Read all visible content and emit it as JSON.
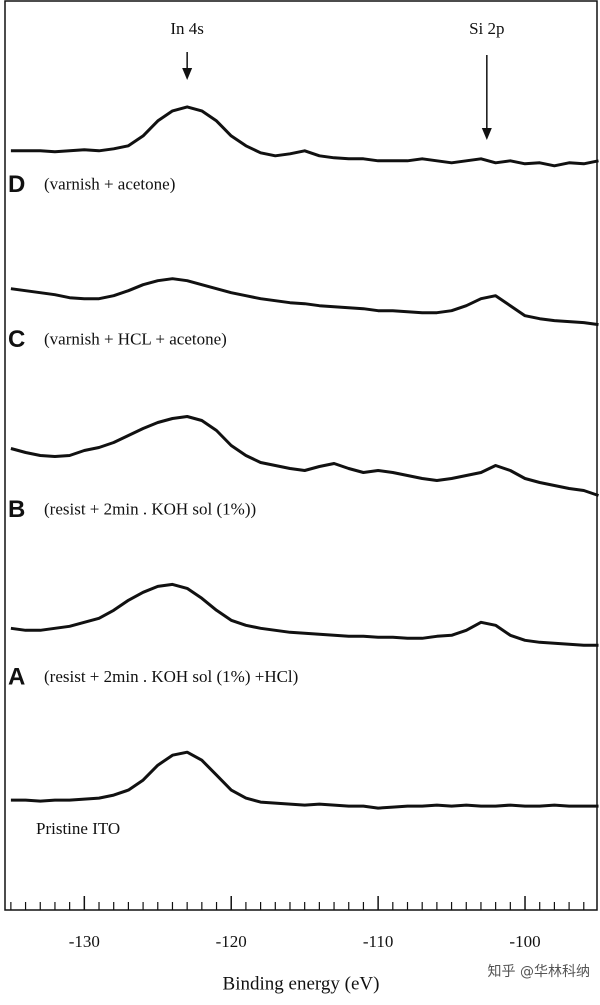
{
  "chart_data": {
    "type": "line",
    "xlabel": "Binding energy (eV)",
    "xlim": [
      -135.4,
      -95.1
    ],
    "ylim": [
      0,
      910
    ],
    "xticks": [
      -130,
      -120,
      -110,
      -100
    ],
    "xminorticks": [
      -135,
      -134,
      -133,
      -132,
      -131,
      -129,
      -128,
      -127,
      -126,
      -125,
      -124,
      -123,
      -122,
      -121,
      -119,
      -118,
      -117,
      -116,
      -115,
      -114,
      -113,
      -112,
      -111,
      -109,
      -108,
      -107,
      -106,
      -105,
      -104,
      -103,
      -102,
      -101,
      -99,
      -98,
      -97,
      -96
    ],
    "x": [
      -135,
      -134,
      -133,
      -132,
      -131,
      -130,
      -129,
      -128,
      -127,
      -126,
      -125,
      -124,
      -123,
      -122,
      -121,
      -120,
      -119,
      -118,
      -117,
      -116,
      -115,
      -114,
      -113,
      -112,
      -111,
      -110,
      -109,
      -108,
      -107,
      -106,
      -105,
      -104,
      -103,
      -102,
      -101,
      -100,
      -99,
      -98,
      -97,
      -96,
      -95
    ],
    "annotations": [
      {
        "text": "In 4s",
        "x": -123
      },
      {
        "text": "Si  2p",
        "x": -102.6
      }
    ],
    "series": [
      {
        "name": "D",
        "description": "(varnish +  acetone)",
        "color": "#111111",
        "values": [
          760,
          760,
          760,
          759,
          760,
          761,
          760,
          762,
          765,
          775,
          790,
          800,
          804,
          800,
          790,
          775,
          765,
          758,
          755,
          757,
          760,
          755,
          753,
          752,
          752,
          750,
          750,
          750,
          752,
          750,
          748,
          750,
          752,
          748,
          750,
          747,
          748,
          745,
          748,
          747,
          750
        ]
      },
      {
        "name": "C",
        "description": "(varnish + HCL + acetone)",
        "color": "#111111",
        "values": [
          622,
          620,
          618,
          616,
          613,
          612,
          612,
          615,
          620,
          626,
          630,
          632,
          630,
          626,
          622,
          618,
          615,
          612,
          610,
          608,
          607,
          605,
          604,
          603,
          602,
          600,
          600,
          599,
          598,
          598,
          600,
          605,
          612,
          615,
          605,
          595,
          592,
          590,
          589,
          588,
          586
        ]
      },
      {
        "name": "B",
        "description": "(resist + 2min . KOH sol (1%))",
        "color": "#111111",
        "values": [
          462,
          458,
          455,
          454,
          455,
          460,
          463,
          468,
          475,
          482,
          488,
          492,
          494,
          490,
          480,
          465,
          455,
          448,
          445,
          442,
          440,
          444,
          447,
          442,
          438,
          440,
          438,
          435,
          432,
          430,
          432,
          435,
          438,
          445,
          440,
          432,
          428,
          425,
          422,
          420,
          415
        ]
      },
      {
        "name": "A",
        "description": "(resist + 2min . KOH sol (1%) +HCl)",
        "color": "#111111",
        "values": [
          282,
          280,
          280,
          282,
          284,
          288,
          292,
          300,
          310,
          318,
          324,
          326,
          322,
          312,
          300,
          290,
          285,
          282,
          280,
          278,
          277,
          276,
          275,
          274,
          274,
          273,
          273,
          272,
          272,
          274,
          275,
          280,
          288,
          285,
          275,
          270,
          268,
          267,
          266,
          265,
          265
        ]
      },
      {
        "name": "Pristine ITO",
        "color": "#111111",
        "values": [
          110,
          110,
          109,
          110,
          110,
          111,
          112,
          115,
          120,
          130,
          145,
          155,
          158,
          150,
          135,
          120,
          112,
          108,
          107,
          106,
          105,
          106,
          105,
          104,
          104,
          102,
          103,
          104,
          104,
          105,
          104,
          105,
          104,
          104,
          105,
          104,
          104,
          105,
          104,
          104,
          104
        ]
      }
    ],
    "watermark": "知乎 @华林科纳"
  }
}
